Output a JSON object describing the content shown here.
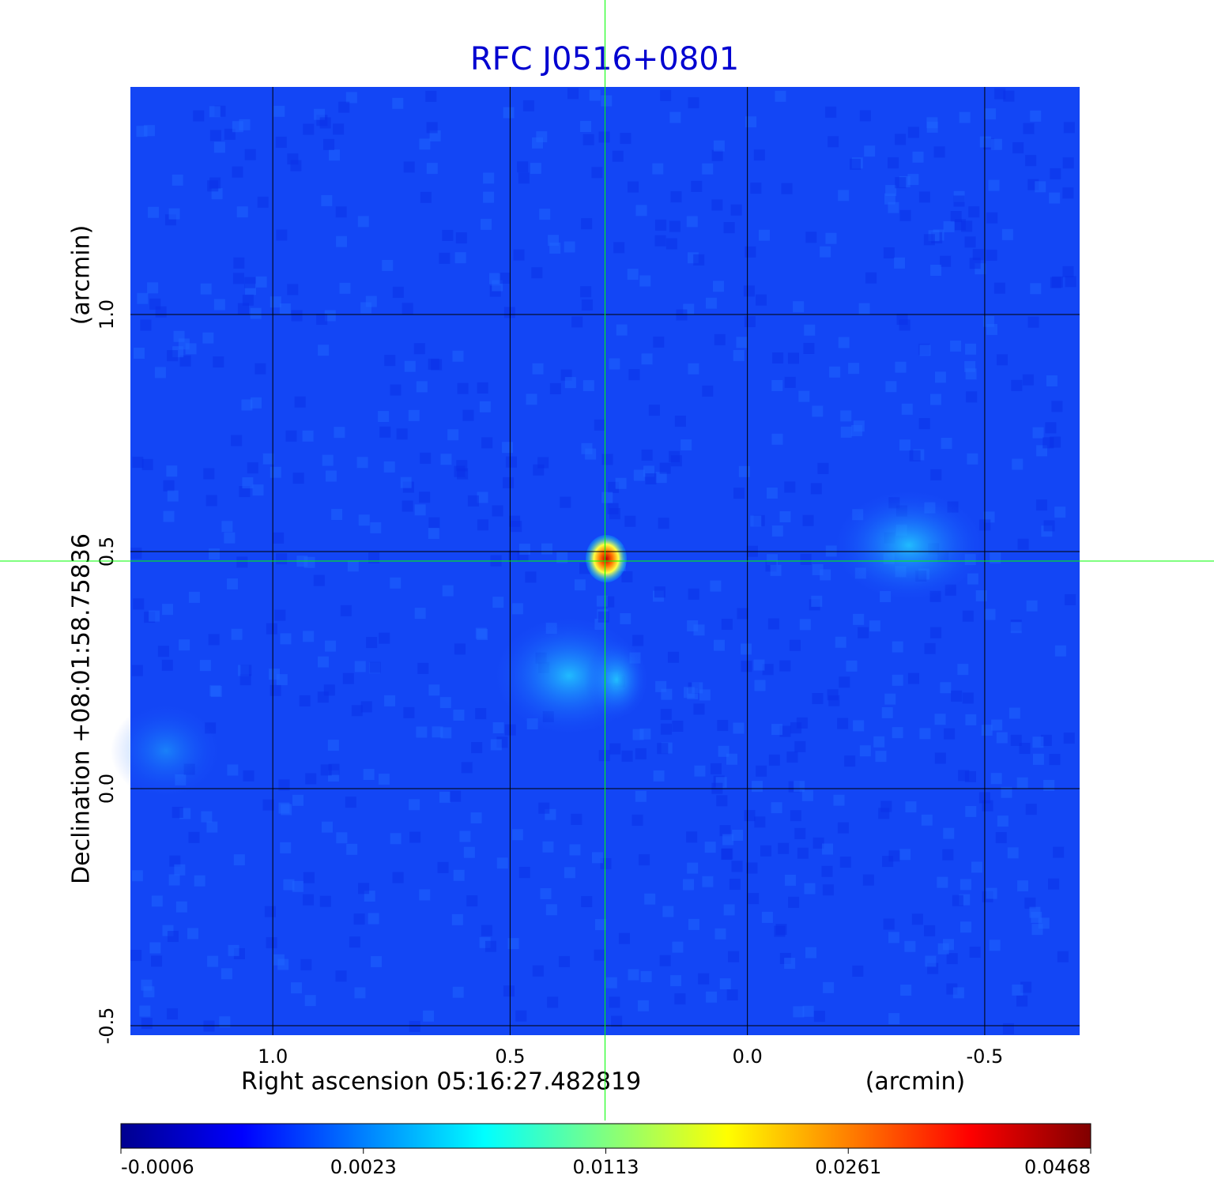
{
  "chart_data": {
    "type": "image",
    "title": "RFC J0516+0801",
    "x_label": "Right ascension  05:16:27.482819",
    "x_unit": "(arcmin)",
    "y_label": "Declination  +08:01:58.75836",
    "y_unit": "(arcmin)",
    "xlim": [
      1.3,
      -0.7
    ],
    "ylim": [
      -0.52,
      1.48
    ],
    "xticks": [
      {
        "value": 1,
        "label": "1.0"
      },
      {
        "value": 0.5,
        "label": "0.5"
      },
      {
        "value": 0,
        "label": "0.0"
      },
      {
        "value": -0.5,
        "label": "-0.5"
      }
    ],
    "yticks": [
      {
        "value": -0.5,
        "label": "-0.5"
      },
      {
        "value": 0,
        "label": "0.0"
      },
      {
        "value": 0.5,
        "label": "0.5"
      },
      {
        "value": 1,
        "label": "1.0"
      }
    ],
    "grid": true,
    "crosshair": {
      "x": 0.3,
      "y": 0.48,
      "color": "#00ff00"
    },
    "colorbar_ticks": [
      -0.0006,
      0.0023,
      0.0113,
      0.0261,
      0.0468
    ],
    "colormap": [
      "#00008f",
      "#0000ff",
      "#0080ff",
      "#00ffff",
      "#80ff80",
      "#ffff00",
      "#ff8000",
      "#ff0000",
      "#800000"
    ]
  }
}
